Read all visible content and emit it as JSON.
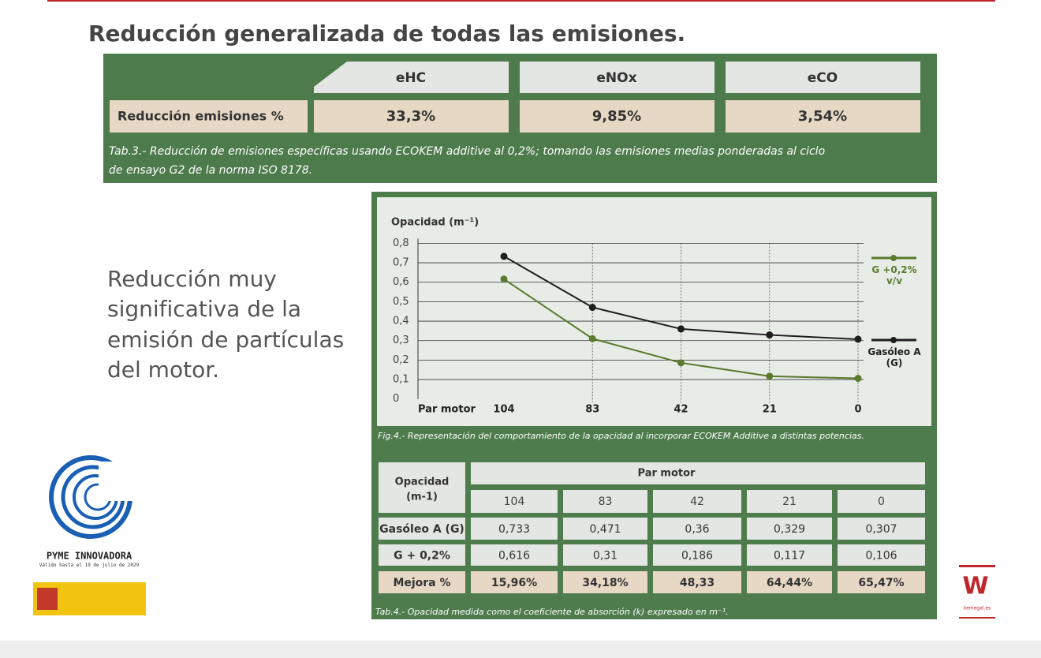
{
  "title": "Reducción generalizada de todas las emisiones.",
  "table1": {
    "header": [
      "eHC",
      "eNOx",
      "eCO"
    ],
    "row_label": "Reducción emisiones %",
    "row": [
      "33,3%",
      "9,85%",
      "3,54%"
    ],
    "caption_lines": [
      "Tab.3.- Reducción de emisiones específicas usando ECOKEM additive al 0,2%; tomando las emisiones medias ponderadas al ciclo",
      "de ensayo G2 de la norma ISO 8178."
    ]
  },
  "text_lines": [
    "Reducción muy",
    "significativa de la",
    "emisión de partículas",
    "del motor."
  ],
  "chart_data": {
    "type": "line",
    "y_label": "Opacidad (m⁻¹)",
    "x_label": "Par motor",
    "categories": [
      "104",
      "83",
      "42",
      "21",
      "0"
    ],
    "series": [
      {
        "name": "G +0,2% v/v",
        "color": "#5a7a2e",
        "values": [
          0.616,
          0.31,
          0.186,
          0.117,
          0.106
        ]
      },
      {
        "name": "Gasóleo A (G)",
        "color": "#1e1e1e",
        "values": [
          0.733,
          0.471,
          0.36,
          0.329,
          0.307
        ]
      }
    ],
    "ylim": [
      0,
      0.8
    ],
    "yticks": [
      0,
      {
        "value": 0.1,
        "label": "0,1"
      },
      {
        "value": 0.2,
        "label": "0,2"
      },
      {
        "value": 0.3,
        "label": "0,3"
      },
      {
        "value": 0.4,
        "label": "0,4"
      },
      {
        "value": 0.5,
        "label": "0,5"
      },
      {
        "value": 0.6,
        "label": "0,6"
      },
      {
        "value": 0.7,
        "label": "0,7"
      },
      {
        "value": 0.8,
        "label": "0,8"
      }
    ],
    "grid": true,
    "caption": "Fig.4.- Representación del comportamiento de la opacidad al incorporar ECOKEM Additive a distintas potencias."
  },
  "table2": {
    "corner": [
      "Opacidad",
      "(m-1)"
    ],
    "header": "Par motor",
    "columns": [
      "104",
      "83",
      "42",
      "21",
      "0"
    ],
    "rows": [
      [
        "Gasóleo A (G)",
        "0,733",
        "0,471",
        "0,36",
        "0,329",
        "0,307"
      ],
      [
        "G + 0,2%",
        "0,616",
        "0,31",
        "0,186",
        "0,117",
        "0,106"
      ],
      [
        "Mejora %",
        "15,96%",
        "34,18%",
        "48,33",
        "64,44%",
        "65,47%"
      ]
    ],
    "caption": "Tab.4.- Opacidad medida como el coeficiente de absorción (k) expresado en m⁻¹."
  },
  "badge": {
    "title": "PYME INNOVADORA",
    "validity": "Válido hasta el 19 de julio de 2029"
  },
  "brand": "kemegal.es"
}
